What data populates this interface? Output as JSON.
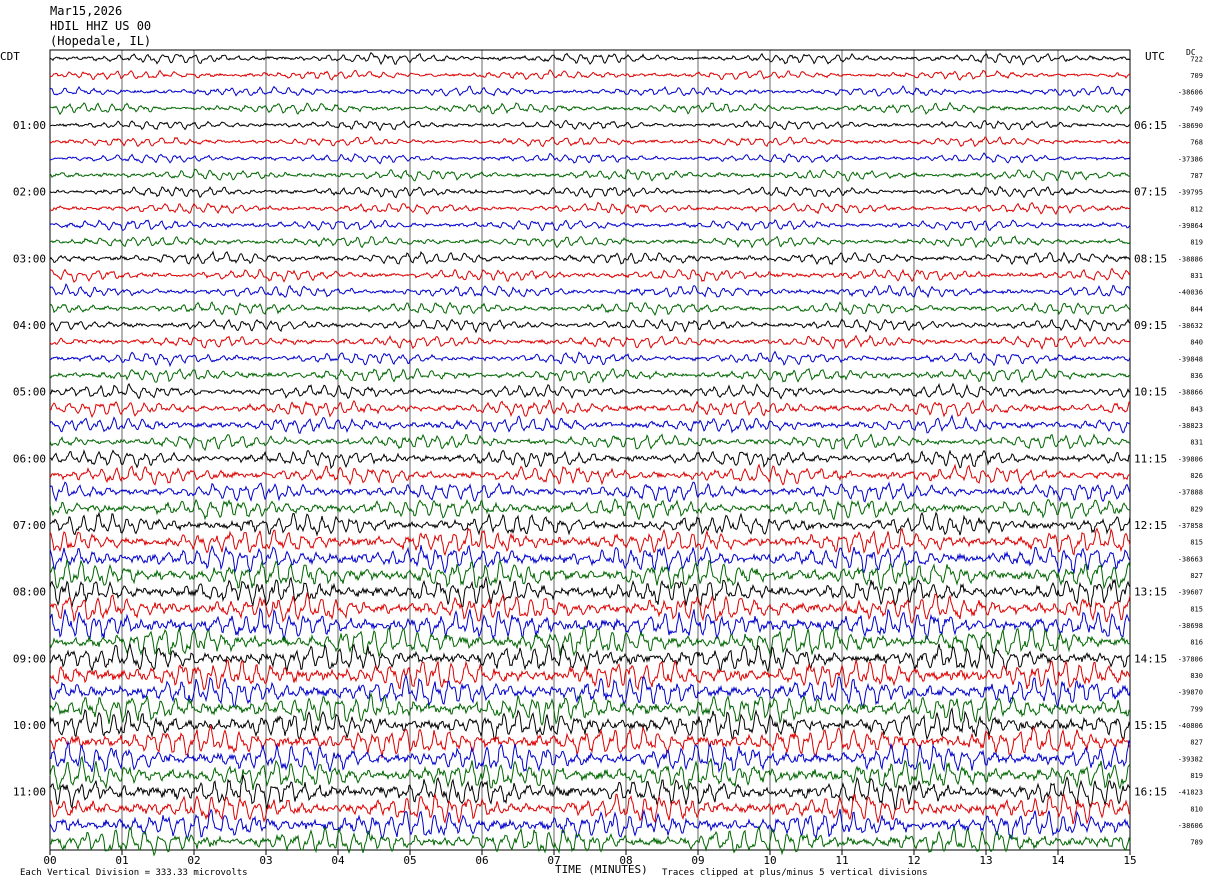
{
  "header": {
    "date": "Mar15,2026",
    "station": "HDIL HHZ US 00",
    "location": "(Hopedale, IL)"
  },
  "tz_left": "CDT",
  "tz_right": "UTC",
  "dc_label": "DC",
  "footer": {
    "scale_note": "Each Vertical Division =  333.33 microvolts",
    "clip_note": "Traces clipped at plus/minus 5 vertical divisions"
  },
  "chart_data": {
    "type": "line",
    "title": "",
    "xlabel": "TIME (MINUTES)",
    "ylabel": "",
    "x_ticks": [
      "00",
      "01",
      "02",
      "03",
      "04",
      "05",
      "06",
      "07",
      "08",
      "09",
      "10",
      "11",
      "12",
      "13",
      "14",
      "15"
    ],
    "xlim": [
      0,
      15
    ],
    "grid": "vertical",
    "trace_colors": [
      "#000000",
      "#dd0000",
      "#0000cc",
      "#006600"
    ],
    "left_time_labels": [
      "01:00",
      "02:00",
      "03:00",
      "04:00",
      "05:00",
      "06:00",
      "07:00",
      "08:00",
      "09:00",
      "10:00",
      "11:00"
    ],
    "right_time_labels": [
      "06:15",
      "07:15",
      "08:15",
      "09:15",
      "10:15",
      "11:15",
      "12:15",
      "13:15",
      "14:15",
      "15:15",
      "16:15"
    ],
    "dc_offsets": [
      "722",
      "709",
      "-38606",
      "749",
      "-38690",
      "768",
      "-37386",
      "787",
      "-39795",
      "812",
      "-39864",
      "819",
      "-38886",
      "831",
      "-40036",
      "844",
      "-38632",
      "840",
      "-39848",
      "836",
      "-38866",
      "843",
      "-38823",
      "831",
      "-39806",
      "826",
      "-37888",
      "829",
      "-37858",
      "815",
      "-38663",
      "827",
      "-39607",
      "815",
      "-38698",
      "816",
      "-37806",
      "830",
      "-39870",
      "799",
      "-40806",
      "827",
      "-39382",
      "819",
      "-41823",
      "810",
      "-38606",
      "789"
    ],
    "trace_amplitude": [
      0.35,
      0.3,
      0.3,
      0.35,
      0.3,
      0.3,
      0.3,
      0.35,
      0.35,
      0.35,
      0.35,
      0.35,
      0.4,
      0.4,
      0.4,
      0.4,
      0.4,
      0.4,
      0.4,
      0.45,
      0.45,
      0.5,
      0.5,
      0.5,
      0.55,
      0.6,
      0.6,
      0.65,
      0.7,
      0.8,
      0.85,
      0.9,
      0.9,
      0.9,
      0.95,
      0.95,
      0.9,
      0.95,
      0.95,
      0.95,
      0.95,
      0.95,
      0.95,
      0.95,
      0.95,
      0.9,
      0.9,
      0.85
    ]
  }
}
